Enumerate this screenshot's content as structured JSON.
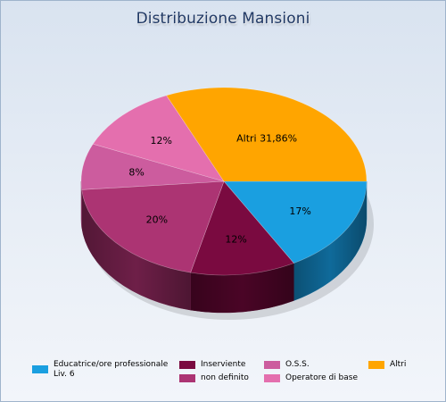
{
  "chart_data": {
    "type": "pie",
    "title": "Distribuzione Mansioni",
    "slices": [
      {
        "name": "Educatrice/ore professionale Liv. 6",
        "value": 17,
        "label": "17%",
        "color": "#1a9fe0",
        "side": "#0f6a9a"
      },
      {
        "name": "Inserviente",
        "value": 12,
        "label": "12%",
        "color": "#7a0a40",
        "side": "#4a0526"
      },
      {
        "name": "non definito",
        "value": 20,
        "label": "20%",
        "color": "#ac3473",
        "side": "#6e1f48"
      },
      {
        "name": "O.S.S.",
        "value": 8,
        "label": "8%",
        "color": "#cc5c9e",
        "side": "#8a3b68"
      },
      {
        "name": "Operatore di base",
        "value": 12,
        "label": "12%",
        "color": "#e46fae",
        "side": "#a44c7c"
      },
      {
        "name": "Altri",
        "value": 31.86,
        "label": "Altri 31,86%",
        "color": "#ffa500",
        "side": "#b57500"
      }
    ],
    "legend": {
      "position": "bottom",
      "entries": [
        {
          "label": "Educatrice/ore professionale Liv. 6",
          "color": "#1a9fe0"
        },
        {
          "label": "Inserviente",
          "color": "#7a0a40"
        },
        {
          "label": "O.S.S.",
          "color": "#cc5c9e"
        },
        {
          "label": "Altri",
          "color": "#ffa500"
        },
        {
          "label": "non definito",
          "color": "#ac3473"
        },
        {
          "label": "Operatore di base",
          "color": "#e46fae"
        }
      ]
    }
  }
}
